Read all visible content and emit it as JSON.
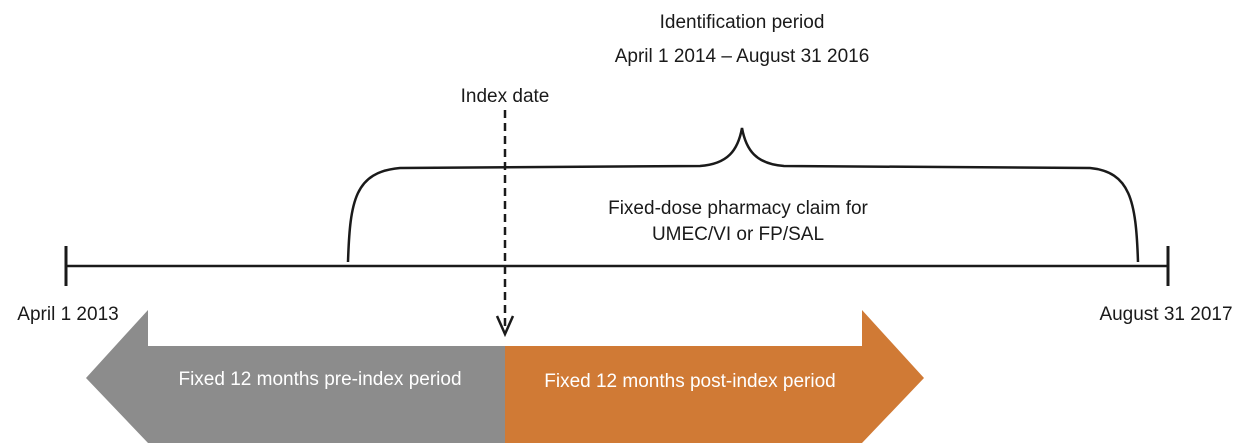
{
  "identification": {
    "title": "Identification period",
    "range": "April 1 2014 – August 31 2016"
  },
  "index_date": "Index date",
  "claim": {
    "line1": "Fixed-dose pharmacy claim for",
    "line2": "UMEC/VI or FP/SAL"
  },
  "timeline": {
    "start": "April 1 2013",
    "end": "August 31 2017"
  },
  "arrows": {
    "pre": "Fixed 12 months pre-index period",
    "post": "Fixed 12 months post-index period"
  }
}
